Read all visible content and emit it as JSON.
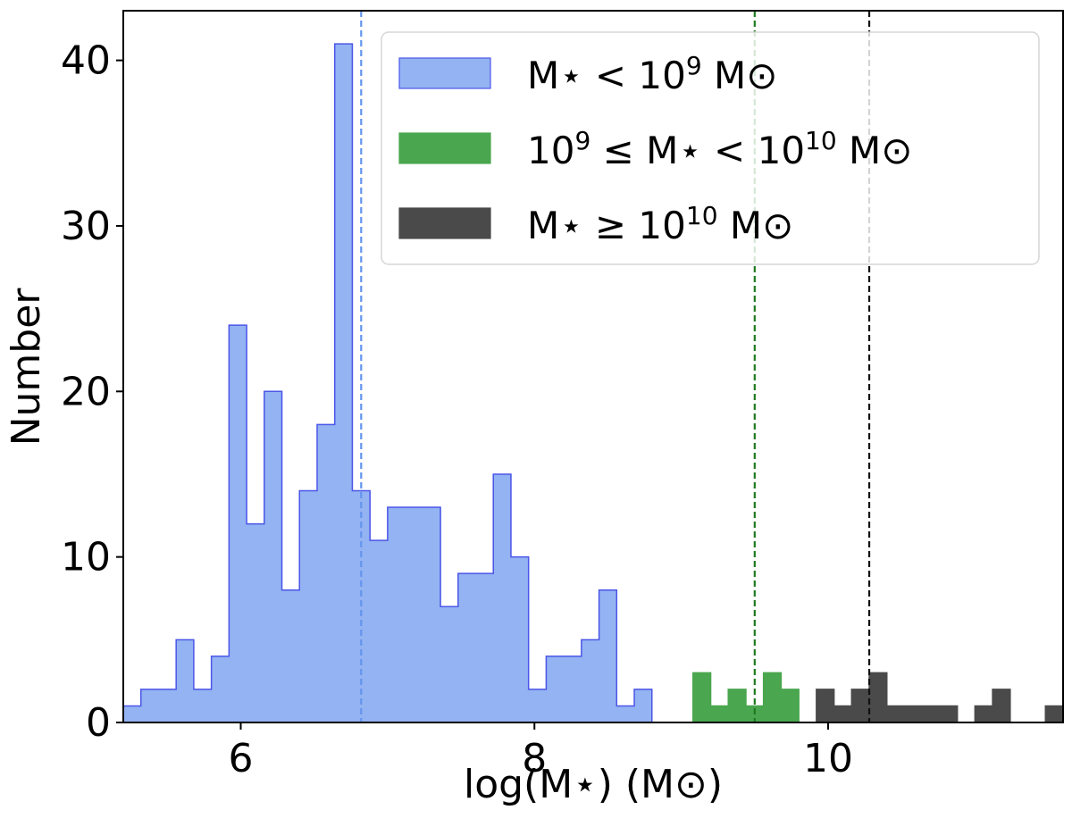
{
  "chart_data": {
    "type": "bar",
    "title": "",
    "xlabel": "log(M⋆) (M⊙)",
    "ylabel": "Number",
    "xlim": [
      5.2,
      11.6
    ],
    "ylim": [
      0,
      43
    ],
    "xticks": [
      6,
      8,
      10
    ],
    "yticks": [
      0,
      10,
      20,
      30,
      40
    ],
    "grid": false,
    "legend_position": "top-right",
    "bin_width": 0.12,
    "series": [
      {
        "name": "M⋆ < 10^9 M⊙",
        "legend_parts": {
          "base": "M⋆ < 10",
          "sup": "9",
          "tail": " M⊙"
        },
        "fill": "#94b3f2",
        "edge": "#4b56e8",
        "bin_start": 5.2,
        "counts": [
          1,
          2,
          2,
          5,
          2,
          4,
          24,
          12,
          20,
          8,
          14,
          18,
          41,
          14,
          11,
          13,
          13,
          13,
          7,
          9,
          9,
          15,
          10,
          2,
          4,
          4,
          5,
          8,
          1,
          2
        ],
        "median": 6.82,
        "median_color": "#6495ed"
      },
      {
        "name": "10^9 ≤ M⋆ < 10^10 M⊙",
        "legend_parts": {
          "base": "10",
          "sup": "9",
          "mid": " ≤ M⋆ < 10",
          "sup2": "10",
          "tail": " M⊙"
        },
        "fill": "#4aa64f",
        "edge": "#4aa64f",
        "bin_start": 9.08,
        "counts": [
          3,
          1,
          2,
          1,
          3,
          2
        ],
        "median": 9.5,
        "median_color": "#1f7a1f"
      },
      {
        "name": "M⋆ ≥ 10^10 M⊙",
        "legend_parts": {
          "base": "M⋆ ≥ 10",
          "sup": "10",
          "tail": " M⊙"
        },
        "fill": "#4a4a4a",
        "edge": "#4a4a4a",
        "bin_start": 9.92,
        "counts": [
          2,
          1,
          2,
          3,
          1,
          1,
          1,
          1,
          0,
          1,
          2,
          0,
          0,
          1
        ],
        "median": 10.28,
        "median_color": "#111111"
      }
    ]
  }
}
